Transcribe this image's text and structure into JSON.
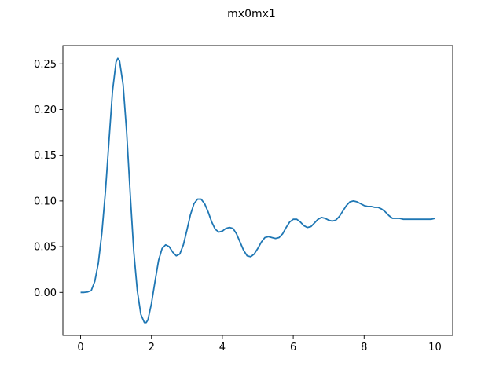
{
  "chart_data": {
    "type": "line",
    "title": "mx0mx1",
    "xlabel": "",
    "ylabel": "",
    "xlim": [
      -0.5,
      10.5
    ],
    "ylim": [
      -0.047,
      0.27
    ],
    "x_ticks": [
      0,
      2,
      4,
      6,
      8,
      10
    ],
    "x_tick_labels": [
      "0",
      "2",
      "4",
      "6",
      "8",
      "10"
    ],
    "y_ticks": [
      0.0,
      0.05,
      0.1,
      0.15,
      0.2,
      0.25
    ],
    "y_tick_labels": [
      "0.00",
      "0.05",
      "0.10",
      "0.15",
      "0.20",
      "0.25"
    ],
    "grid": false,
    "legend": "none",
    "series": [
      {
        "color": "#1f77b4",
        "x": [
          0.0,
          0.1,
          0.2,
          0.3,
          0.4,
          0.5,
          0.6,
          0.7,
          0.8,
          0.9,
          1.0,
          1.05,
          1.1,
          1.2,
          1.3,
          1.4,
          1.5,
          1.6,
          1.7,
          1.8,
          1.85,
          1.9,
          2.0,
          2.1,
          2.2,
          2.3,
          2.4,
          2.5,
          2.6,
          2.7,
          2.8,
          2.9,
          3.0,
          3.1,
          3.2,
          3.3,
          3.4,
          3.5,
          3.6,
          3.7,
          3.8,
          3.9,
          4.0,
          4.1,
          4.2,
          4.3,
          4.4,
          4.5,
          4.6,
          4.7,
          4.8,
          4.9,
          5.0,
          5.1,
          5.2,
          5.3,
          5.4,
          5.5,
          5.6,
          5.7,
          5.8,
          5.9,
          6.0,
          6.1,
          6.2,
          6.3,
          6.4,
          6.5,
          6.6,
          6.7,
          6.8,
          6.9,
          7.0,
          7.1,
          7.2,
          7.3,
          7.4,
          7.5,
          7.6,
          7.7,
          7.8,
          7.9,
          8.0,
          8.1,
          8.2,
          8.3,
          8.4,
          8.5,
          8.6,
          8.7,
          8.8,
          8.9,
          9.0,
          9.1,
          9.2,
          9.3,
          9.4,
          9.5,
          9.6,
          9.7,
          9.8,
          9.9,
          10.0
        ],
        "y": [
          0.0,
          0.0,
          0.0005,
          0.002,
          0.012,
          0.032,
          0.065,
          0.11,
          0.165,
          0.22,
          0.252,
          0.256,
          0.253,
          0.227,
          0.175,
          0.108,
          0.045,
          0.002,
          -0.024,
          -0.033,
          -0.033,
          -0.03,
          -0.012,
          0.012,
          0.035,
          0.048,
          0.052,
          0.05,
          0.044,
          0.04,
          0.042,
          0.052,
          0.068,
          0.085,
          0.097,
          0.102,
          0.102,
          0.097,
          0.088,
          0.077,
          0.069,
          0.066,
          0.067,
          0.07,
          0.071,
          0.07,
          0.064,
          0.055,
          0.046,
          0.04,
          0.039,
          0.042,
          0.048,
          0.055,
          0.06,
          0.061,
          0.06,
          0.059,
          0.06,
          0.064,
          0.071,
          0.077,
          0.08,
          0.08,
          0.077,
          0.073,
          0.071,
          0.072,
          0.076,
          0.08,
          0.082,
          0.081,
          0.079,
          0.078,
          0.079,
          0.083,
          0.089,
          0.095,
          0.099,
          0.1,
          0.099,
          0.097,
          0.095,
          0.094,
          0.094,
          0.093,
          0.093,
          0.091,
          0.088,
          0.084,
          0.081,
          0.081,
          0.081,
          0.08,
          0.08,
          0.08,
          0.08,
          0.08,
          0.08,
          0.08,
          0.08,
          0.08,
          0.081
        ]
      }
    ]
  }
}
